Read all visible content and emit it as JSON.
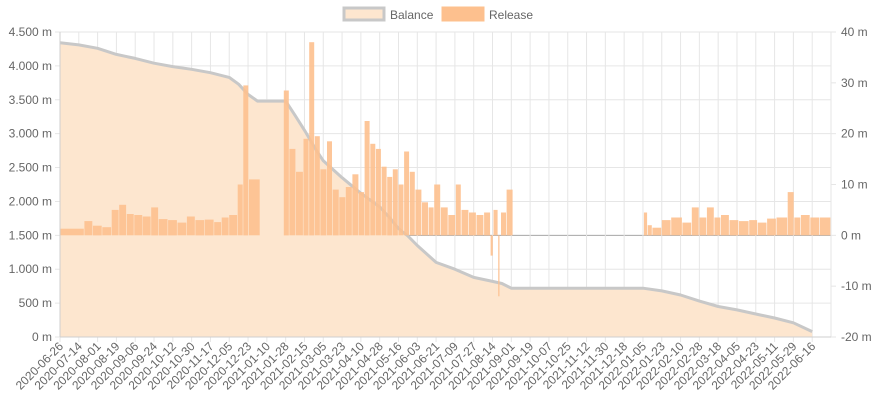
{
  "chart_data": {
    "type": "bar+area",
    "legend": [
      {
        "label": "Balance",
        "fill": "#fde6cf",
        "stroke": "#c8c8c8"
      },
      {
        "label": "Release",
        "fill": "#fdc08e",
        "stroke": "#fdc08e"
      }
    ],
    "colors": {
      "balance_fill": "#fde6cf",
      "balance_line": "#c8c8c8",
      "release_bar": "#fdc08e",
      "grid": "#e6e6e6",
      "zero_line": "#aaaaaa"
    },
    "y_left": {
      "min": 0,
      "max": 4500000,
      "ticks": [
        "0 m",
        "500 m",
        "1.000 m",
        "1.500 m",
        "2.000 m",
        "2.500 m",
        "3.000 m",
        "3.500 m",
        "4.000 m",
        "4.500 m"
      ]
    },
    "y_right": {
      "min": -20,
      "max": 40,
      "ticks": [
        "-20 m",
        "-10 m",
        "0 m",
        "10 m",
        "20 m",
        "30 m",
        "40 m"
      ]
    },
    "x_labels": [
      "2020-06-26",
      "2020-07-14",
      "2020-08-01",
      "2020-08-19",
      "2020-09-06",
      "2020-09-24",
      "2020-10-12",
      "2020-10-30",
      "2020-11-17",
      "2020-12-05",
      "2020-12-23",
      "2021-01-10",
      "2021-01-28",
      "2021-02-15",
      "2021-03-05",
      "2021-03-23",
      "2021-04-10",
      "2021-04-28",
      "2021-05-16",
      "2021-06-03",
      "2021-06-21",
      "2021-07-09",
      "2021-07-27",
      "2021-08-14",
      "2021-09-01",
      "2021-09-19",
      "2021-10-07",
      "2021-10-25",
      "2021-11-12",
      "2021-11-30",
      "2021-12-18",
      "2022-01-05",
      "2022-01-23",
      "2022-02-10",
      "2022-02-28",
      "2022-03-18",
      "2022-04-05",
      "2022-04-23",
      "2022-05-11",
      "2022-05-29",
      "2022-06-16"
    ],
    "balance": [
      {
        "x": 0,
        "y": 4340000
      },
      {
        "x": 1,
        "y": 4310000
      },
      {
        "x": 2,
        "y": 4260000
      },
      {
        "x": 3,
        "y": 4170000
      },
      {
        "x": 4,
        "y": 4110000
      },
      {
        "x": 5,
        "y": 4040000
      },
      {
        "x": 6,
        "y": 3990000
      },
      {
        "x": 7,
        "y": 3950000
      },
      {
        "x": 8,
        "y": 3900000
      },
      {
        "x": 9,
        "y": 3830000
      },
      {
        "x": 9.5,
        "y": 3730000
      },
      {
        "x": 10,
        "y": 3580000
      },
      {
        "x": 10.5,
        "y": 3480000
      },
      {
        "x": 12,
        "y": 3480000
      },
      {
        "x": 12.5,
        "y": 3270000
      },
      {
        "x": 13,
        "y": 3050000
      },
      {
        "x": 13.6,
        "y": 2770000
      },
      {
        "x": 14,
        "y": 2600000
      },
      {
        "x": 15,
        "y": 2350000
      },
      {
        "x": 16,
        "y": 2120000
      },
      {
        "x": 17,
        "y": 1920000
      },
      {
        "x": 17.5,
        "y": 1770000
      },
      {
        "x": 18,
        "y": 1600000
      },
      {
        "x": 18.5,
        "y": 1490000
      },
      {
        "x": 19,
        "y": 1350000
      },
      {
        "x": 20,
        "y": 1100000
      },
      {
        "x": 21,
        "y": 1000000
      },
      {
        "x": 22,
        "y": 880000
      },
      {
        "x": 23,
        "y": 820000
      },
      {
        "x": 23.5,
        "y": 790000
      },
      {
        "x": 24,
        "y": 720000
      },
      {
        "x": 25,
        "y": 720000
      },
      {
        "x": 26,
        "y": 720000
      },
      {
        "x": 27,
        "y": 720000
      },
      {
        "x": 28,
        "y": 720000
      },
      {
        "x": 29,
        "y": 720000
      },
      {
        "x": 30,
        "y": 720000
      },
      {
        "x": 31,
        "y": 720000
      },
      {
        "x": 32,
        "y": 680000
      },
      {
        "x": 33,
        "y": 620000
      },
      {
        "x": 34,
        "y": 530000
      },
      {
        "x": 35,
        "y": 450000
      },
      {
        "x": 36,
        "y": 400000
      },
      {
        "x": 37,
        "y": 340000
      },
      {
        "x": 38,
        "y": 280000
      },
      {
        "x": 39,
        "y": 210000
      },
      {
        "x": 40,
        "y": 80000
      }
    ],
    "release": [
      {
        "x": 0.0,
        "w": 1.3,
        "y": 1.3
      },
      {
        "x": 1.3,
        "w": 0.45,
        "y": 2.8
      },
      {
        "x": 1.75,
        "w": 0.5,
        "y": 1.9
      },
      {
        "x": 2.25,
        "w": 0.5,
        "y": 1.6
      },
      {
        "x": 2.75,
        "w": 0.4,
        "y": 5.0
      },
      {
        "x": 3.15,
        "w": 0.4,
        "y": 6.0
      },
      {
        "x": 3.55,
        "w": 0.4,
        "y": 4.2
      },
      {
        "x": 3.95,
        "w": 0.45,
        "y": 4.0
      },
      {
        "x": 4.4,
        "w": 0.45,
        "y": 3.7
      },
      {
        "x": 4.85,
        "w": 0.4,
        "y": 5.5
      },
      {
        "x": 5.25,
        "w": 0.5,
        "y": 3.2
      },
      {
        "x": 5.75,
        "w": 0.5,
        "y": 3.0
      },
      {
        "x": 6.25,
        "w": 0.5,
        "y": 2.5
      },
      {
        "x": 6.75,
        "w": 0.45,
        "y": 3.7
      },
      {
        "x": 7.2,
        "w": 0.5,
        "y": 3.0
      },
      {
        "x": 7.7,
        "w": 0.5,
        "y": 3.1
      },
      {
        "x": 8.2,
        "w": 0.4,
        "y": 2.6
      },
      {
        "x": 8.6,
        "w": 0.4,
        "y": 3.5
      },
      {
        "x": 9.0,
        "w": 0.45,
        "y": 4.0
      },
      {
        "x": 9.45,
        "w": 0.3,
        "y": 10.0
      },
      {
        "x": 9.75,
        "w": 0.3,
        "y": 29.5
      },
      {
        "x": 10.05,
        "w": 0.6,
        "y": 11.0
      },
      {
        "x": 11.9,
        "w": 0.3,
        "y": 28.5
      },
      {
        "x": 12.2,
        "w": 0.35,
        "y": 17.0
      },
      {
        "x": 12.55,
        "w": 0.4,
        "y": 12.5
      },
      {
        "x": 12.95,
        "w": 0.3,
        "y": 19.0
      },
      {
        "x": 13.25,
        "w": 0.3,
        "y": 38.0
      },
      {
        "x": 13.55,
        "w": 0.3,
        "y": 19.5
      },
      {
        "x": 13.85,
        "w": 0.35,
        "y": 13.0
      },
      {
        "x": 14.2,
        "w": 0.3,
        "y": 18.5
      },
      {
        "x": 14.5,
        "w": 0.35,
        "y": 9.0
      },
      {
        "x": 14.85,
        "w": 0.35,
        "y": 7.5
      },
      {
        "x": 15.2,
        "w": 0.35,
        "y": 9.5
      },
      {
        "x": 15.55,
        "w": 0.35,
        "y": 12.0
      },
      {
        "x": 15.9,
        "w": 0.3,
        "y": 8.5
      },
      {
        "x": 16.2,
        "w": 0.3,
        "y": 22.5
      },
      {
        "x": 16.5,
        "w": 0.3,
        "y": 18.0
      },
      {
        "x": 16.8,
        "w": 0.3,
        "y": 17.0
      },
      {
        "x": 17.1,
        "w": 0.3,
        "y": 13.5
      },
      {
        "x": 17.4,
        "w": 0.3,
        "y": 11.5
      },
      {
        "x": 17.7,
        "w": 0.3,
        "y": 13.0
      },
      {
        "x": 18.0,
        "w": 0.3,
        "y": 10.0
      },
      {
        "x": 18.3,
        "w": 0.3,
        "y": 16.5
      },
      {
        "x": 18.6,
        "w": 0.3,
        "y": 12.5
      },
      {
        "x": 18.9,
        "w": 0.35,
        "y": 9.0
      },
      {
        "x": 19.25,
        "w": 0.35,
        "y": 6.5
      },
      {
        "x": 19.6,
        "w": 0.3,
        "y": 5.5
      },
      {
        "x": 19.9,
        "w": 0.35,
        "y": 10.0
      },
      {
        "x": 20.25,
        "w": 0.4,
        "y": 5.5
      },
      {
        "x": 20.65,
        "w": 0.4,
        "y": 4.0
      },
      {
        "x": 21.05,
        "w": 0.3,
        "y": 10.0
      },
      {
        "x": 21.35,
        "w": 0.4,
        "y": 5.0
      },
      {
        "x": 21.75,
        "w": 0.4,
        "y": 4.5
      },
      {
        "x": 22.15,
        "w": 0.4,
        "y": 4.0
      },
      {
        "x": 22.55,
        "w": 0.35,
        "y": 4.5
      },
      {
        "x": 22.9,
        "w": 0.15,
        "y": -4.0
      },
      {
        "x": 23.05,
        "w": 0.25,
        "y": 5.0
      },
      {
        "x": 23.3,
        "w": 0.1,
        "y": -12.0
      },
      {
        "x": 23.45,
        "w": 0.3,
        "y": 4.5
      },
      {
        "x": 23.75,
        "w": 0.35,
        "y": 9.0
      },
      {
        "x": 31.05,
        "w": 0.2,
        "y": 4.5
      },
      {
        "x": 31.25,
        "w": 0.25,
        "y": 2.0
      },
      {
        "x": 31.5,
        "w": 0.5,
        "y": 1.5
      },
      {
        "x": 32.0,
        "w": 0.5,
        "y": 3.0
      },
      {
        "x": 32.5,
        "w": 0.6,
        "y": 3.5
      },
      {
        "x": 33.1,
        "w": 0.5,
        "y": 2.5
      },
      {
        "x": 33.6,
        "w": 0.4,
        "y": 5.5
      },
      {
        "x": 34.0,
        "w": 0.4,
        "y": 3.5
      },
      {
        "x": 34.4,
        "w": 0.4,
        "y": 5.5
      },
      {
        "x": 34.8,
        "w": 0.35,
        "y": 3.5
      },
      {
        "x": 35.15,
        "w": 0.45,
        "y": 4.0
      },
      {
        "x": 35.6,
        "w": 0.5,
        "y": 3.0
      },
      {
        "x": 36.1,
        "w": 0.55,
        "y": 2.8
      },
      {
        "x": 36.65,
        "w": 0.45,
        "y": 3.0
      },
      {
        "x": 37.1,
        "w": 0.5,
        "y": 2.5
      },
      {
        "x": 37.6,
        "w": 0.5,
        "y": 3.3
      },
      {
        "x": 38.1,
        "w": 0.6,
        "y": 3.5
      },
      {
        "x": 38.7,
        "w": 0.35,
        "y": 8.5
      },
      {
        "x": 39.05,
        "w": 0.35,
        "y": 3.5
      },
      {
        "x": 39.4,
        "w": 0.5,
        "y": 4.0
      },
      {
        "x": 39.9,
        "w": 0.5,
        "y": 3.5
      },
      {
        "x": 40.4,
        "w": 0.6,
        "y": 3.5
      }
    ]
  }
}
